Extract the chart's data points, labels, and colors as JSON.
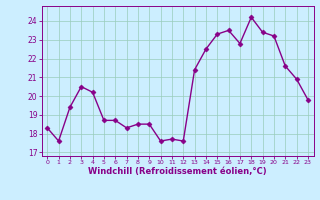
{
  "x": [
    0,
    1,
    2,
    3,
    4,
    5,
    6,
    7,
    8,
    9,
    10,
    11,
    12,
    13,
    14,
    15,
    16,
    17,
    18,
    19,
    20,
    21,
    22,
    23
  ],
  "y": [
    18.3,
    17.6,
    19.4,
    20.5,
    20.2,
    18.7,
    18.7,
    18.3,
    18.5,
    18.5,
    17.6,
    17.7,
    17.6,
    21.4,
    22.5,
    23.3,
    23.5,
    22.8,
    24.2,
    23.4,
    23.2,
    21.6,
    20.9,
    19.8
  ],
  "line_color": "#880088",
  "marker": "D",
  "marker_color": "#880088",
  "bg_color": "#cceeff",
  "grid_color": "#99ccbb",
  "xlabel": "Windchill (Refroidissement éolien,°C)",
  "xlabel_color": "#880088",
  "tick_color": "#880088",
  "ytick_label_color": "#880088",
  "ylim": [
    16.8,
    24.8
  ],
  "yticks": [
    17,
    18,
    19,
    20,
    21,
    22,
    23,
    24
  ],
  "xlim": [
    -0.5,
    23.5
  ],
  "xticks": [
    0,
    1,
    2,
    3,
    4,
    5,
    6,
    7,
    8,
    9,
    10,
    11,
    12,
    13,
    14,
    15,
    16,
    17,
    18,
    19,
    20,
    21,
    22,
    23
  ],
  "xtick_labels": [
    "0",
    "1",
    "2",
    "3",
    "4",
    "5",
    "6",
    "7",
    "8",
    "9",
    "10",
    "11",
    "12",
    "13",
    "14",
    "15",
    "16",
    "17",
    "18",
    "19",
    "20",
    "21",
    "22",
    "23"
  ],
  "line_width": 1.0,
  "marker_size": 2.5
}
